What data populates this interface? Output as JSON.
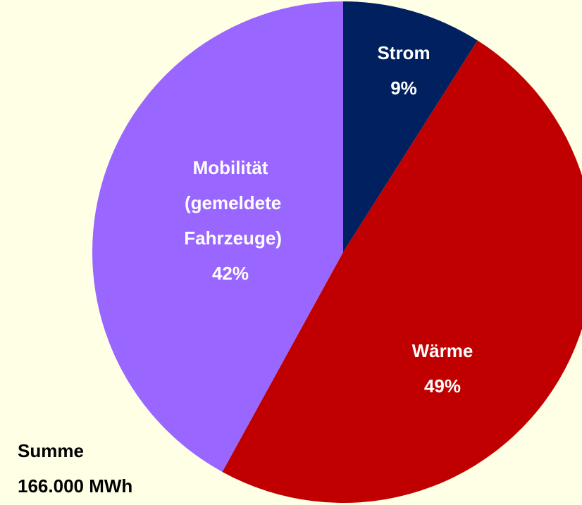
{
  "chart_data": {
    "type": "pie",
    "categories": [
      "Strom",
      "Wärme",
      "Mobilität (gemeldete Fahrzeuge)"
    ],
    "values": [
      9,
      49,
      42
    ],
    "value_labels": [
      "9%",
      "49%",
      "42%"
    ],
    "colors": [
      "#002060",
      "#C00000",
      "#9966FF"
    ],
    "annotation": [
      "Summe",
      "166.000 MWh"
    ]
  }
}
